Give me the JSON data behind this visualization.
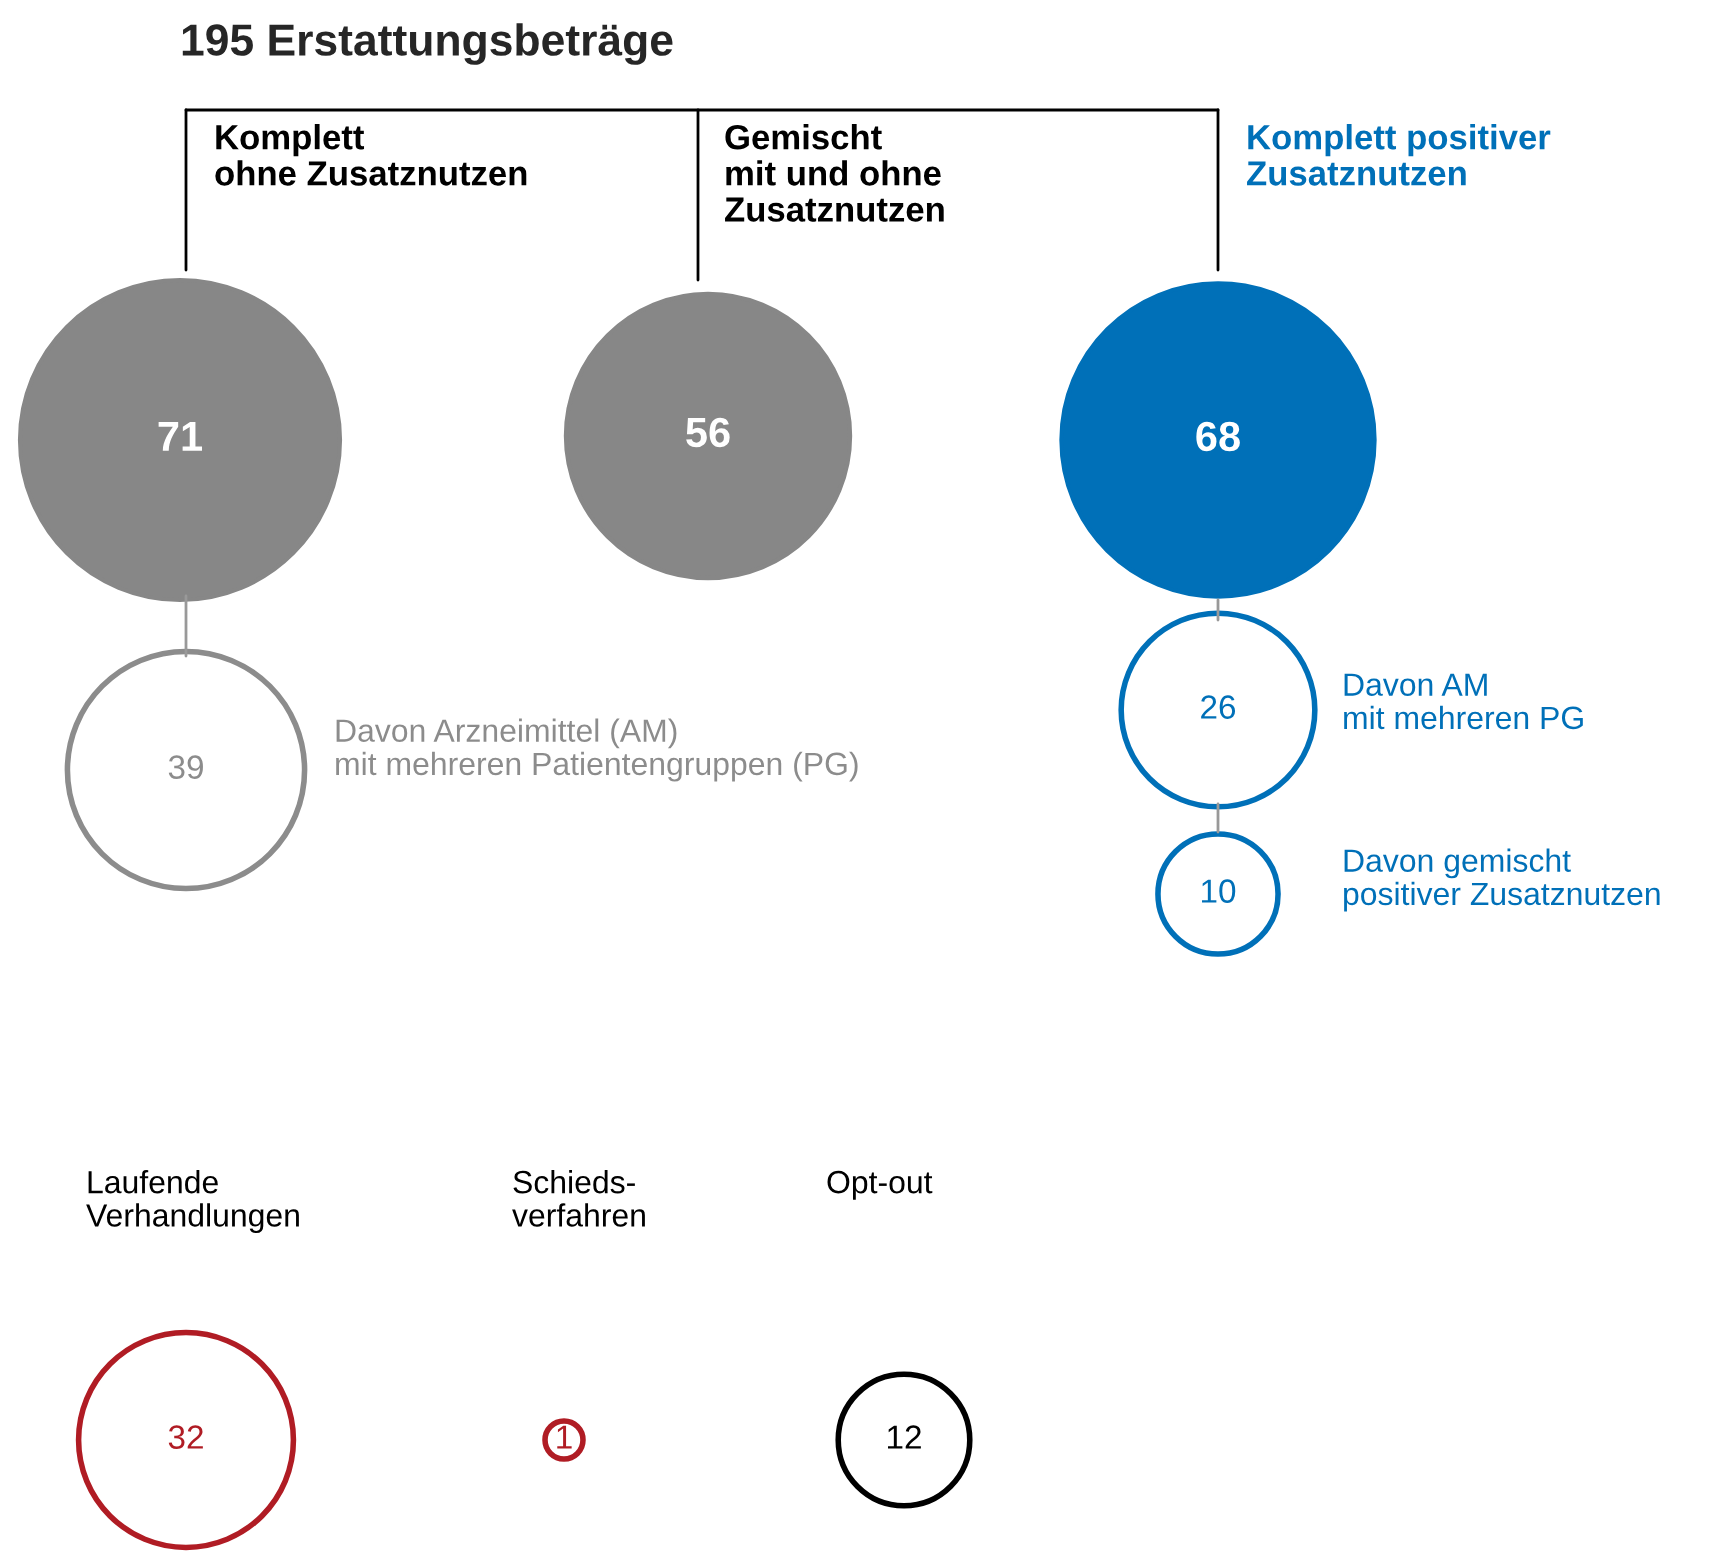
{
  "chart_data": {
    "type": "other",
    "title": "195 Erstattungsbeträge",
    "categories": [
      "Komplett\nohne Zusatznutzen",
      "Gemischt\nmit und ohne\nZusatznutzen",
      "Komplett positiver\nZusatznutzen",
      "Davon Arzneimittel (AM)\nmit mehreren Patientengruppen (PG)",
      "Davon AM\nmit mehreren PG",
      "Davon gemischt\npositiver Zusatznutzen",
      "Laufende\nVerhandlungen",
      "Schieds-\nverfahren",
      "Opt-out"
    ],
    "values": [
      71,
      56,
      68,
      39,
      26,
      10,
      32,
      1,
      12
    ],
    "colors": [
      "#878787",
      "#878787",
      "#0070b8",
      "#8c8c8c",
      "#0070b8",
      "#0070b8",
      "#b01c24",
      "#b01c24",
      "#000000"
    ],
    "data_labels": true
  }
}
